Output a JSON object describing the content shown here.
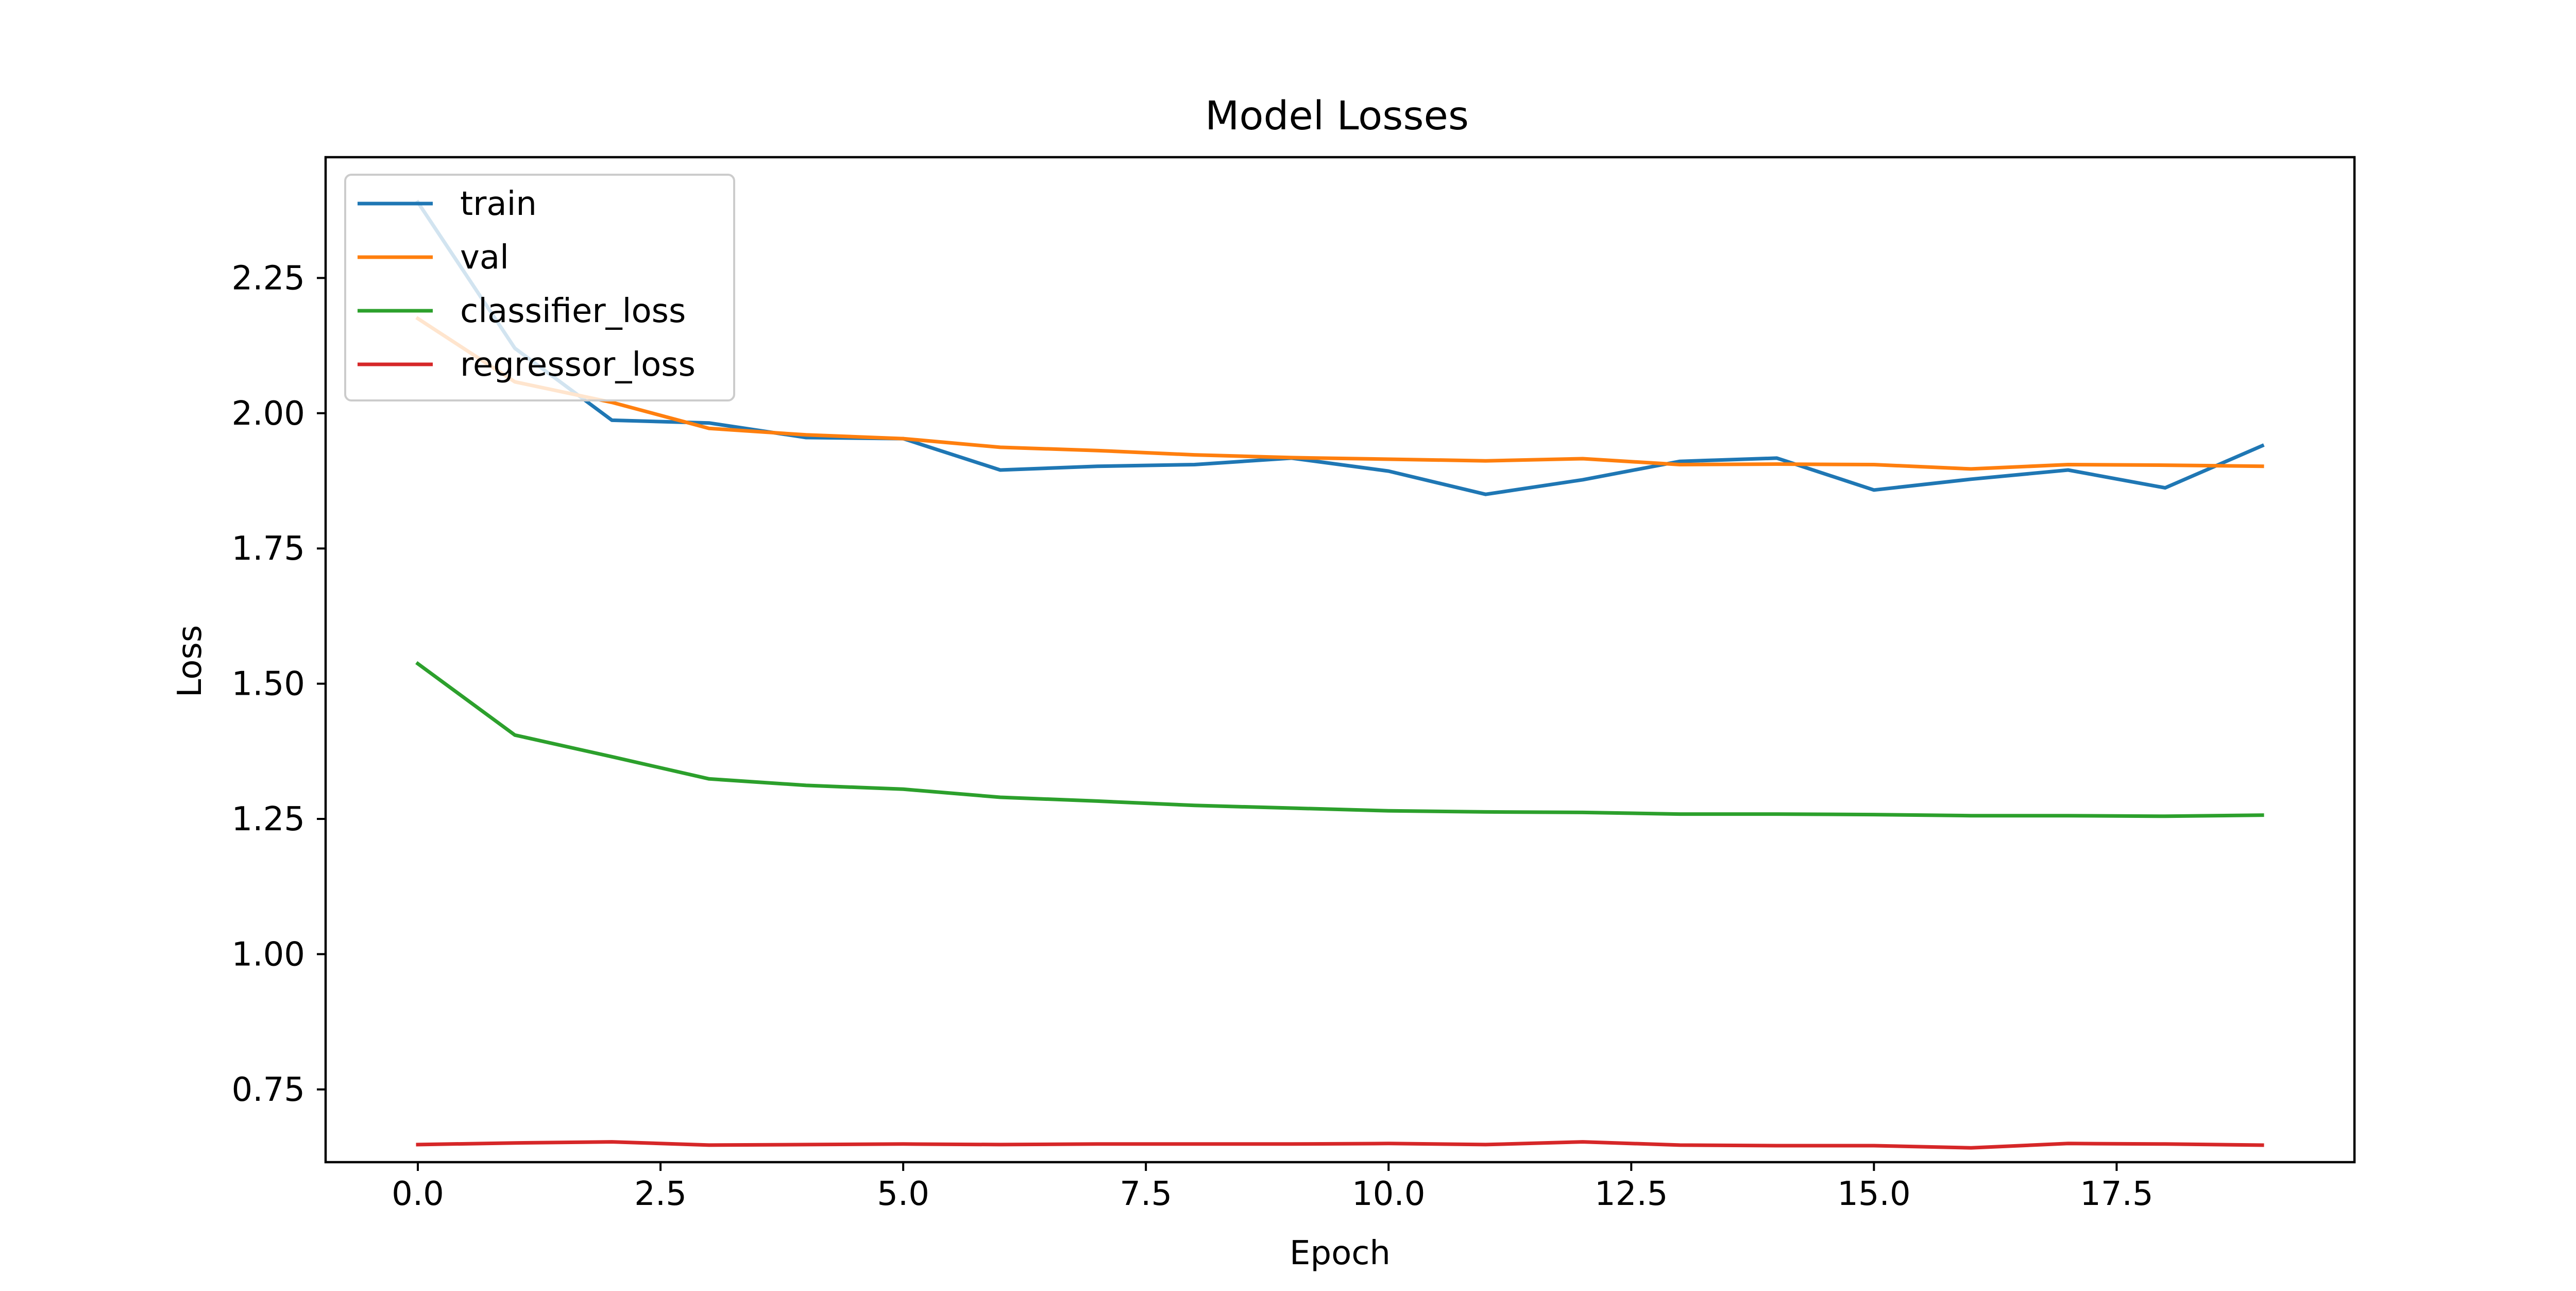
{
  "chart_data": {
    "type": "line",
    "title": "Model Losses",
    "xlabel": "Epoch",
    "ylabel": "Loss",
    "xlim": [
      -0.95,
      19.95
    ],
    "ylim": [
      0.6155,
      2.4733
    ],
    "xticks": [
      0.0,
      2.5,
      5.0,
      7.5,
      10.0,
      12.5,
      15.0,
      17.5
    ],
    "xtick_labels": [
      "0.0",
      "2.5",
      "5.0",
      "7.5",
      "10.0",
      "12.5",
      "15.0",
      "17.5"
    ],
    "yticks": [
      0.75,
      1.0,
      1.25,
      1.5,
      1.75,
      2.0,
      2.25
    ],
    "ytick_labels": [
      "0.75",
      "1.00",
      "1.25",
      "1.50",
      "1.75",
      "2.00",
      "2.25"
    ],
    "grid": false,
    "legend_position": "upper-left",
    "x": [
      0,
      1,
      2,
      3,
      4,
      5,
      6,
      7,
      8,
      9,
      10,
      11,
      12,
      13,
      14,
      15,
      16,
      17,
      18,
      19
    ],
    "series": [
      {
        "name": "train",
        "color": "#1f77b4",
        "values": [
          2.39,
          2.12,
          1.987,
          1.982,
          1.955,
          1.953,
          1.895,
          1.902,
          1.905,
          1.917,
          1.893,
          1.85,
          1.877,
          1.911,
          1.917,
          1.858,
          1.878,
          1.895,
          1.862,
          1.94
        ]
      },
      {
        "name": "val",
        "color": "#ff7f0e",
        "values": [
          2.175,
          2.058,
          2.02,
          1.972,
          1.96,
          1.953,
          1.937,
          1.931,
          1.923,
          1.918,
          1.915,
          1.912,
          1.916,
          1.905,
          1.906,
          1.905,
          1.897,
          1.905,
          1.904,
          1.902
        ]
      },
      {
        "name": "classifier_loss",
        "color": "#2ca02c",
        "values": [
          1.537,
          1.405,
          1.365,
          1.324,
          1.312,
          1.305,
          1.29,
          1.283,
          1.275,
          1.27,
          1.265,
          1.263,
          1.262,
          1.259,
          1.259,
          1.258,
          1.256,
          1.256,
          1.255,
          1.257
        ]
      },
      {
        "name": "regressor_loss",
        "color": "#d62728",
        "values": [
          0.648,
          0.651,
          0.653,
          0.647,
          0.648,
          0.649,
          0.648,
          0.649,
          0.649,
          0.649,
          0.65,
          0.648,
          0.653,
          0.647,
          0.646,
          0.646,
          0.642,
          0.65,
          0.649,
          0.647
        ]
      }
    ]
  }
}
